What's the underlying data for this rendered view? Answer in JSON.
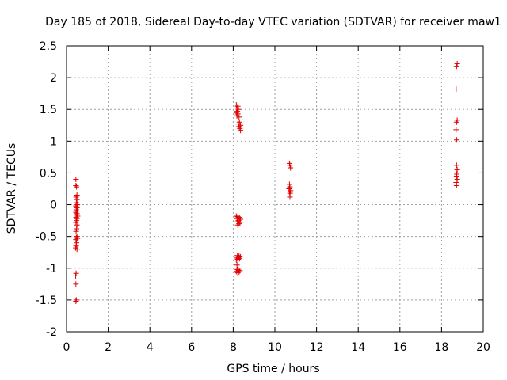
{
  "chart_data": {
    "type": "scatter",
    "title": "Day 185 of 2018, Sidereal Day-to-day VTEC variation (SDTVAR) for receiver maw1",
    "xlabel": "GPS time / hours",
    "ylabel": "SDTVAR / TECUs",
    "xlim": [
      0,
      20
    ],
    "ylim": [
      -2,
      2.5
    ],
    "xticks": [
      0,
      2,
      4,
      6,
      8,
      10,
      12,
      14,
      16,
      18,
      20
    ],
    "yticks": [
      -2,
      -1.5,
      -1,
      -0.5,
      0,
      0.5,
      1,
      1.5,
      2,
      2.5
    ],
    "xtick_labels": [
      "0",
      "2",
      "4",
      "6",
      "8",
      "10",
      "12",
      "14",
      "16",
      "18",
      "20"
    ],
    "ytick_labels": [
      "-2",
      "-1.5",
      "-1",
      "-0.5",
      "0",
      "0.5",
      "1",
      "1.5",
      "2",
      "2.5"
    ],
    "grid": true,
    "marker": "+",
    "color": "#e00000",
    "series": [
      {
        "name": "SDTVAR",
        "points": [
          [
            0.45,
            0.4
          ],
          [
            0.45,
            0.3
          ],
          [
            0.48,
            0.28
          ],
          [
            0.5,
            0.15
          ],
          [
            0.46,
            0.12
          ],
          [
            0.5,
            0.08
          ],
          [
            0.47,
            0.03
          ],
          [
            0.52,
            0.0
          ],
          [
            0.45,
            -0.02
          ],
          [
            0.5,
            -0.05
          ],
          [
            0.47,
            -0.08
          ],
          [
            0.52,
            -0.1
          ],
          [
            0.45,
            -0.12
          ],
          [
            0.5,
            -0.14
          ],
          [
            0.48,
            -0.16
          ],
          [
            0.53,
            -0.18
          ],
          [
            0.46,
            -0.2
          ],
          [
            0.5,
            -0.22
          ],
          [
            0.48,
            -0.25
          ],
          [
            0.45,
            -0.28
          ],
          [
            0.5,
            -0.32
          ],
          [
            0.48,
            -0.38
          ],
          [
            0.46,
            -0.42
          ],
          [
            0.5,
            -0.5
          ],
          [
            0.47,
            -0.52
          ],
          [
            0.52,
            -0.53
          ],
          [
            0.45,
            -0.55
          ],
          [
            0.48,
            -0.6
          ],
          [
            0.46,
            -0.65
          ],
          [
            0.44,
            -0.68
          ],
          [
            0.5,
            -0.7
          ],
          [
            0.46,
            -1.08
          ],
          [
            0.44,
            -1.12
          ],
          [
            0.45,
            -1.25
          ],
          [
            0.47,
            -1.5
          ],
          [
            0.45,
            -1.52
          ],
          [
            8.15,
            1.57
          ],
          [
            8.22,
            1.55
          ],
          [
            8.18,
            1.52
          ],
          [
            8.25,
            1.5
          ],
          [
            8.2,
            1.47
          ],
          [
            8.15,
            1.45
          ],
          [
            8.22,
            1.43
          ],
          [
            8.18,
            1.4
          ],
          [
            8.28,
            1.38
          ],
          [
            8.3,
            1.3
          ],
          [
            8.25,
            1.27
          ],
          [
            8.35,
            1.25
          ],
          [
            8.28,
            1.23
          ],
          [
            8.32,
            1.2
          ],
          [
            8.35,
            1.17
          ],
          [
            8.15,
            -0.18
          ],
          [
            8.22,
            -0.19
          ],
          [
            8.3,
            -0.2
          ],
          [
            8.18,
            -0.22
          ],
          [
            8.35,
            -0.23
          ],
          [
            8.25,
            -0.25
          ],
          [
            8.2,
            -0.27
          ],
          [
            8.32,
            -0.28
          ],
          [
            8.28,
            -0.3
          ],
          [
            8.22,
            -0.32
          ],
          [
            8.2,
            -0.8
          ],
          [
            8.28,
            -0.81
          ],
          [
            8.35,
            -0.82
          ],
          [
            8.25,
            -0.83
          ],
          [
            8.18,
            -0.84
          ],
          [
            8.3,
            -0.85
          ],
          [
            8.22,
            -0.86
          ],
          [
            8.15,
            -0.87
          ],
          [
            8.18,
            -0.95
          ],
          [
            8.2,
            -1.02
          ],
          [
            8.25,
            -1.03
          ],
          [
            8.32,
            -1.04
          ],
          [
            8.15,
            -1.05
          ],
          [
            8.28,
            -1.06
          ],
          [
            8.22,
            -1.07
          ],
          [
            10.7,
            0.65
          ],
          [
            10.72,
            0.62
          ],
          [
            10.75,
            0.58
          ],
          [
            10.7,
            0.32
          ],
          [
            10.72,
            0.28
          ],
          [
            10.68,
            0.25
          ],
          [
            10.75,
            0.22
          ],
          [
            10.7,
            0.2
          ],
          [
            10.73,
            0.18
          ],
          [
            10.72,
            0.12
          ],
          [
            18.75,
            2.22
          ],
          [
            18.72,
            2.18
          ],
          [
            18.7,
            1.82
          ],
          [
            18.75,
            1.33
          ],
          [
            18.72,
            1.3
          ],
          [
            18.7,
            1.18
          ],
          [
            18.73,
            1.02
          ],
          [
            18.72,
            0.62
          ],
          [
            18.75,
            0.55
          ],
          [
            18.7,
            0.5
          ],
          [
            18.73,
            0.48
          ],
          [
            18.72,
            0.45
          ],
          [
            18.75,
            0.4
          ],
          [
            18.7,
            0.35
          ],
          [
            18.72,
            0.3
          ]
        ]
      }
    ]
  }
}
